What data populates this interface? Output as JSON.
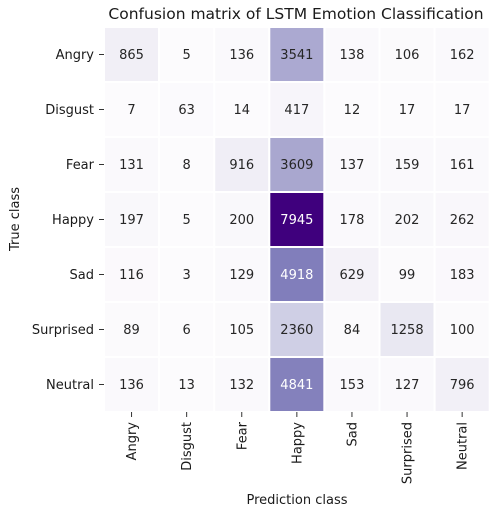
{
  "chart_data": {
    "type": "heatmap",
    "title": "Confusion matrix of LSTM Emotion Classification",
    "xlabel": "Prediction class",
    "ylabel": "True class",
    "row_labels": [
      "Angry",
      "Disgust",
      "Fear",
      "Happy",
      "Sad",
      "Surprised",
      "Neutral"
    ],
    "col_labels": [
      "Angry",
      "Disgust",
      "Fear",
      "Happy",
      "Sad",
      "Surprised",
      "Neutral"
    ],
    "values": [
      [
        865,
        5,
        136,
        3541,
        138,
        106,
        162
      ],
      [
        7,
        63,
        14,
        417,
        12,
        17,
        17
      ],
      [
        131,
        8,
        916,
        3609,
        137,
        159,
        161
      ],
      [
        197,
        5,
        200,
        7945,
        178,
        202,
        262
      ],
      [
        116,
        3,
        129,
        4918,
        629,
        99,
        183
      ],
      [
        89,
        6,
        105,
        2360,
        84,
        1258,
        100
      ],
      [
        136,
        13,
        132,
        4841,
        153,
        127,
        796
      ]
    ],
    "colormap": "Purples",
    "colorbar": false,
    "cell_border_color": "#ffffff"
  }
}
